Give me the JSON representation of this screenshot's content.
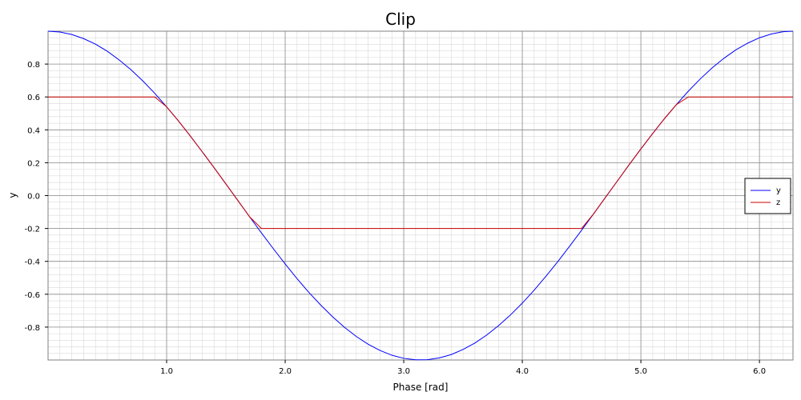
{
  "chart_data": {
    "type": "line",
    "title": "Clip",
    "xlabel": "Phase [rad]",
    "ylabel": "y",
    "xlim": [
      0.0,
      6.283
    ],
    "ylim": [
      -1.0,
      1.0
    ],
    "x_ticks": [
      "1.0",
      "2.0",
      "3.0",
      "4.0",
      "5.0",
      "6.0"
    ],
    "y_ticks": [
      "0.8",
      "0.6",
      "0.4",
      "0.2",
      "0.0",
      "-0.2",
      "-0.4",
      "-0.6",
      "-0.8"
    ],
    "grid": true,
    "legend_position": "right",
    "x": [
      0.0,
      0.1,
      0.2,
      0.3,
      0.4,
      0.5,
      0.6,
      0.7,
      0.8,
      0.9,
      1.0,
      1.1,
      1.2,
      1.3,
      1.4,
      1.5,
      1.6,
      1.7,
      1.8,
      1.9,
      2.0,
      2.1,
      2.2,
      2.3,
      2.4,
      2.5,
      2.6,
      2.7,
      2.8,
      2.9,
      3.0,
      3.1,
      3.2,
      3.3,
      3.4,
      3.5,
      3.6,
      3.7,
      3.8,
      3.9,
      4.0,
      4.1,
      4.2,
      4.3,
      4.4,
      4.5,
      4.6,
      4.7,
      4.8,
      4.9,
      5.0,
      5.1,
      5.2,
      5.3,
      5.4,
      5.5,
      5.6,
      5.7,
      5.8,
      5.9,
      6.0,
      6.1,
      6.2,
      6.283
    ],
    "series": [
      {
        "name": "y",
        "color": "#0000ff",
        "values": [
          1.0,
          0.995,
          0.98,
          0.955,
          0.921,
          0.878,
          0.825,
          0.765,
          0.697,
          0.622,
          0.54,
          0.454,
          0.362,
          0.267,
          0.17,
          0.071,
          -0.029,
          -0.129,
          -0.227,
          -0.323,
          -0.416,
          -0.505,
          -0.589,
          -0.666,
          -0.737,
          -0.801,
          -0.857,
          -0.904,
          -0.942,
          -0.971,
          -0.99,
          -0.999,
          -0.998,
          -0.987,
          -0.967,
          -0.936,
          -0.897,
          -0.848,
          -0.791,
          -0.726,
          -0.654,
          -0.575,
          -0.49,
          -0.401,
          -0.307,
          -0.211,
          -0.112,
          -0.012,
          0.087,
          0.187,
          0.284,
          0.378,
          0.469,
          0.554,
          0.635,
          0.709,
          0.776,
          0.835,
          0.886,
          0.927,
          0.96,
          0.983,
          0.997,
          1.0
        ]
      },
      {
        "name": "z",
        "color": "#cc0000",
        "values": [
          0.6,
          0.6,
          0.6,
          0.6,
          0.6,
          0.6,
          0.6,
          0.6,
          0.6,
          0.6,
          0.54,
          0.454,
          0.362,
          0.267,
          0.17,
          0.071,
          -0.029,
          -0.129,
          -0.2,
          -0.2,
          -0.2,
          -0.2,
          -0.2,
          -0.2,
          -0.2,
          -0.2,
          -0.2,
          -0.2,
          -0.2,
          -0.2,
          -0.2,
          -0.2,
          -0.2,
          -0.2,
          -0.2,
          -0.2,
          -0.2,
          -0.2,
          -0.2,
          -0.2,
          -0.2,
          -0.2,
          -0.2,
          -0.2,
          -0.2,
          -0.2,
          -0.112,
          -0.012,
          0.087,
          0.187,
          0.284,
          0.378,
          0.469,
          0.554,
          0.6,
          0.6,
          0.6,
          0.6,
          0.6,
          0.6,
          0.6,
          0.6,
          0.6,
          0.6
        ]
      }
    ]
  }
}
